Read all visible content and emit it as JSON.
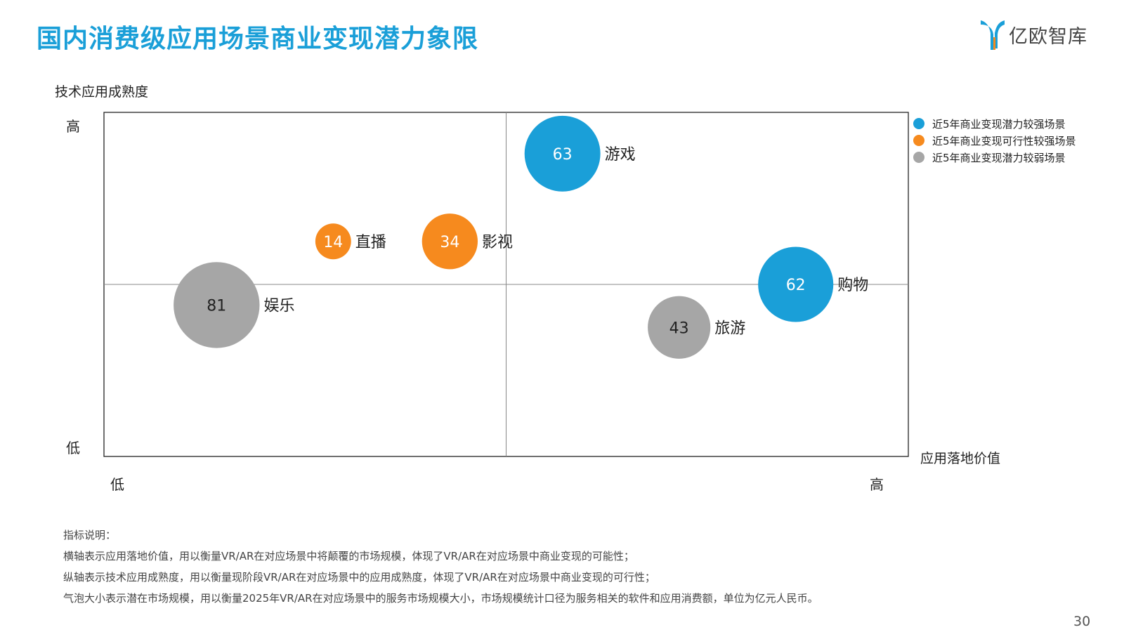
{
  "title": "国内消费级应用场景商业变现潜力象限",
  "logo": {
    "text": "亿欧智库",
    "icon": "yiou-logo-icon"
  },
  "chart_data": {
    "type": "scatter",
    "subtype": "bubble-quadrant",
    "ylabel": "技术应用成熟度",
    "xlabel": "应用落地价值",
    "y_ticks": {
      "high": "高",
      "low": "低"
    },
    "x_ticks": {
      "low": "低",
      "high": "高"
    },
    "xlim": [
      0,
      1
    ],
    "ylim": [
      0,
      1
    ],
    "quadrant_split": {
      "x": 0.5,
      "y": 0.5
    },
    "grid": false,
    "legend_position": "top-right",
    "series": [
      {
        "name": "近5年商业变现潜力较强场景",
        "color": "#1a9fd8"
      },
      {
        "name": "近5年商业变现可行性较强场景",
        "color": "#f68a1e"
      },
      {
        "name": "近5年商业变现潜力较弱场景",
        "color": "#a6a6a6"
      }
    ],
    "points": [
      {
        "label": "游戏",
        "size": 63,
        "x": 0.57,
        "y": 0.88,
        "series": 0
      },
      {
        "label": "购物",
        "size": 62,
        "x": 0.86,
        "y": 0.5,
        "series": 0
      },
      {
        "label": "直播",
        "size": 14,
        "x": 0.285,
        "y": 0.625,
        "series": 1
      },
      {
        "label": "影视",
        "size": 34,
        "x": 0.43,
        "y": 0.625,
        "series": 1
      },
      {
        "label": "娱乐",
        "size": 81,
        "x": 0.14,
        "y": 0.44,
        "series": 2
      },
      {
        "label": "旅游",
        "size": 43,
        "x": 0.715,
        "y": 0.375,
        "series": 2
      }
    ]
  },
  "notes": {
    "heading": "指标说明：",
    "lines": [
      "横轴表示应用落地价值，用以衡量VR/AR在对应场景中将颠覆的市场规模，体现了VR/AR在对应场景中商业变现的可能性；",
      "纵轴表示技术应用成熟度，用以衡量现阶段VR/AR在对应场景中的应用成熟度，体现了VR/AR在对应场景中商业变现的可行性；",
      "气泡大小表示潜在市场规模，用以衡量2025年VR/AR在对应场景中的服务市场规模大小，市场规模统计口径为服务相关的软件和应用消费额，单位为亿元人民币。"
    ]
  },
  "page_number": "30"
}
